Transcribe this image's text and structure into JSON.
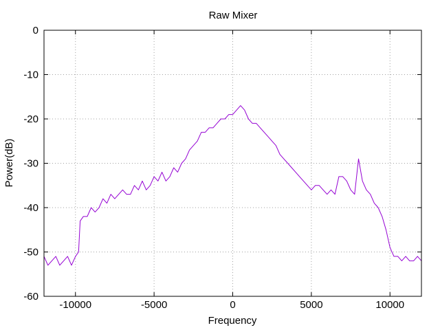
{
  "chart_data": {
    "type": "line",
    "title": "Raw Mixer",
    "xlabel": "Frequency",
    "ylabel": "Power(dB)",
    "xlim": [
      -12000,
      12000
    ],
    "ylim": [
      -60,
      0
    ],
    "x_ticks": [
      -10000,
      -5000,
      0,
      5000,
      10000
    ],
    "x_tick_labels": [
      "-10000",
      "-5000",
      "0",
      "5000",
      "10000"
    ],
    "y_ticks": [
      0,
      -10,
      -20,
      -30,
      -40,
      -50,
      -60
    ],
    "y_tick_labels": [
      "0",
      "-10",
      "-20",
      "-30",
      "-40",
      "-50",
      "-60"
    ],
    "grid": true,
    "legend": "none",
    "series": [
      {
        "color": "#9400d3",
        "x": [
          -12000,
          -11750,
          -11500,
          -11250,
          -11000,
          -10750,
          -10500,
          -10250,
          -10000,
          -9800,
          -9700,
          -9500,
          -9250,
          -9000,
          -8750,
          -8500,
          -8250,
          -8000,
          -7750,
          -7500,
          -7250,
          -7000,
          -6750,
          -6500,
          -6250,
          -6000,
          -5750,
          -5500,
          -5250,
          -5000,
          -4750,
          -4500,
          -4250,
          -4000,
          -3750,
          -3500,
          -3250,
          -3000,
          -2750,
          -2500,
          -2250,
          -2000,
          -1750,
          -1500,
          -1250,
          -1000,
          -750,
          -500,
          -250,
          0,
          250,
          500,
          750,
          1000,
          1250,
          1500,
          1750,
          2000,
          2250,
          2500,
          2750,
          3000,
          3250,
          3500,
          3750,
          4000,
          4250,
          4500,
          4750,
          5000,
          5250,
          5500,
          5750,
          6000,
          6250,
          6500,
          6750,
          7000,
          7250,
          7500,
          7750,
          8000,
          8250,
          8500,
          8750,
          9000,
          9250,
          9500,
          9750,
          10000,
          10250,
          10500,
          10750,
          11000,
          11250,
          11500,
          11750,
          12000
        ],
        "y": [
          -51,
          -53,
          -52,
          -51,
          -53,
          -52,
          -51,
          -53,
          -51,
          -50,
          -43,
          -42,
          -42,
          -40,
          -41,
          -40,
          -38,
          -39,
          -37,
          -38,
          -37,
          -36,
          -37,
          -37,
          -35,
          -36,
          -34,
          -36,
          -35,
          -33,
          -34,
          -32,
          -34,
          -33,
          -31,
          -32,
          -30,
          -29,
          -27,
          -26,
          -25,
          -23,
          -23,
          -22,
          -22,
          -21,
          -20,
          -20,
          -19,
          -19,
          -18,
          -17,
          -18,
          -20,
          -21,
          -21,
          -22,
          -23,
          -24,
          -25,
          -26,
          -28,
          -29,
          -30,
          -31,
          -32,
          -33,
          -34,
          -35,
          -36,
          -35,
          -35,
          -36,
          -37,
          -36,
          -37,
          -33,
          -33,
          -34,
          -36,
          -37,
          -29,
          -34,
          -36,
          -37,
          -39,
          -40,
          -42,
          -45,
          -49,
          -51,
          -51,
          -52,
          -51,
          -52,
          -52,
          -51,
          -52
        ]
      }
    ]
  }
}
